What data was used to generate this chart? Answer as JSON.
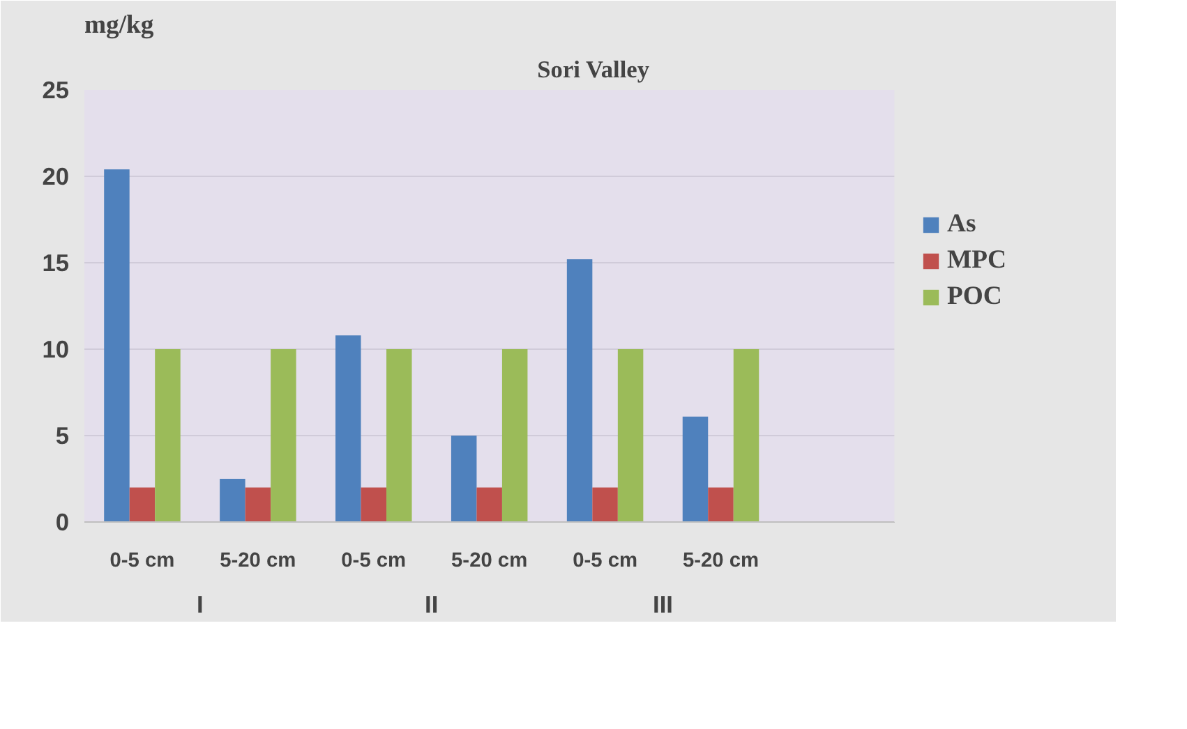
{
  "chart_data": {
    "type": "bar",
    "title": "Sori Valley",
    "ylabel": "mg/kg",
    "categories": [
      "0-5 cm",
      "5-20 cm",
      "0-5 cm",
      "5-20 cm",
      "0-5 cm",
      "5-20 cm",
      null
    ],
    "series": [
      {
        "name": "As",
        "color": "#4f81bd",
        "values": [
          20.4,
          2.5,
          10.8,
          5.0,
          15.2,
          6.1,
          null
        ]
      },
      {
        "name": "MPC",
        "color": "#c0504d",
        "values": [
          2,
          2,
          2,
          2,
          2,
          2,
          null
        ]
      },
      {
        "name": "POC",
        "color": "#9bbb59",
        "values": [
          10,
          10,
          10,
          10,
          10,
          10,
          null
        ]
      }
    ],
    "annotations": [
      "I",
      "II",
      "III"
    ],
    "ylim": [
      0,
      25
    ],
    "yticks": [
      0,
      5,
      10,
      15,
      20,
      25
    ],
    "grid": "y",
    "legend": "right"
  }
}
